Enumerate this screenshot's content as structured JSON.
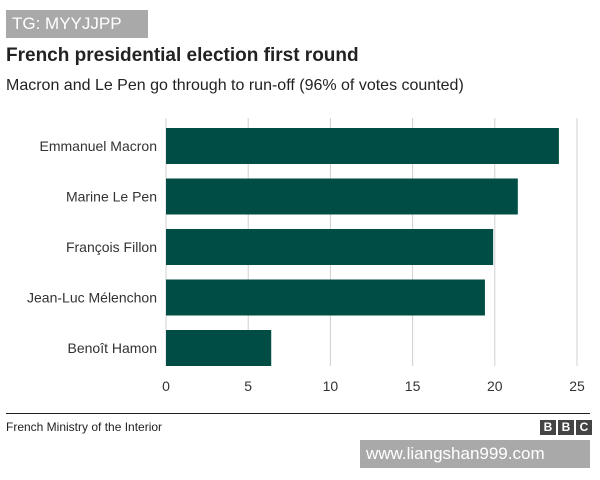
{
  "watermark_top": "TG: MYYJJPP",
  "watermark_bottom": "www.liangshan999.com",
  "source": "French Ministry of the Interior",
  "brand_letters": [
    "B",
    "B",
    "C"
  ],
  "colors": {
    "bar": "#004d45",
    "brand": "#444444"
  },
  "chart_data": {
    "type": "bar",
    "orientation": "horizontal",
    "title": "French presidential election first round",
    "subtitle": "Macron and Le Pen go through to run-off (96% of votes counted)",
    "categories": [
      "Emmanuel Macron",
      "Marine Le Pen",
      "François Fillon",
      "Jean-Luc Mélenchon",
      "Benoît Hamon"
    ],
    "values": [
      23.9,
      21.4,
      19.9,
      19.4,
      6.4
    ],
    "xlim": [
      0,
      25
    ],
    "xticks": [
      0,
      5,
      10,
      15,
      20,
      25
    ],
    "grid": true
  }
}
